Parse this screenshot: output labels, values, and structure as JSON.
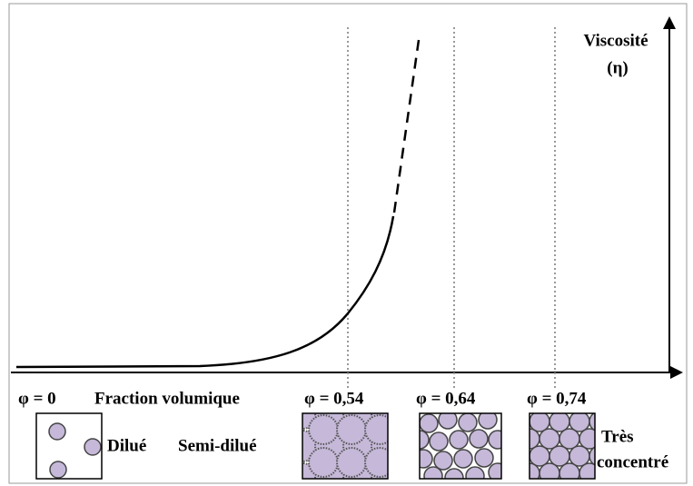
{
  "axis": {
    "y_label": "Viscosité",
    "y_symbol": "(η)",
    "x_label": "Fraction volumique"
  },
  "markers": [
    "φ = 0",
    "φ = 0,54",
    "φ = 0,64",
    "φ = 0,74"
  ],
  "regimes": {
    "dilute": "Dilué",
    "semi_dilute": "Semi-dilué",
    "concentrated_1": "Très",
    "concentrated_2": "concentré"
  }
}
